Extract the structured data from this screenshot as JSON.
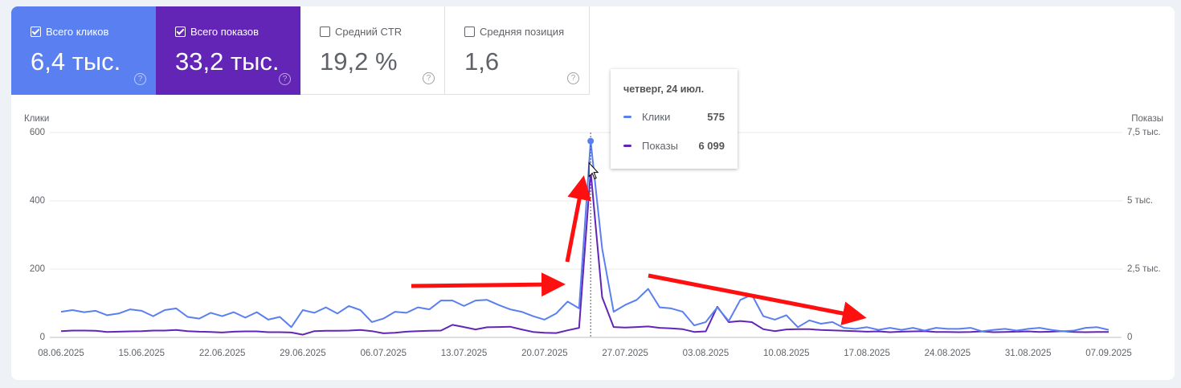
{
  "cards": [
    {
      "label": "Всего кликов",
      "value": "6,4 тыс.",
      "selected": true,
      "color": "#5a7ff0"
    },
    {
      "label": "Всего показов",
      "value": "33,2 тыс.",
      "selected": true,
      "color": "#6325b5"
    },
    {
      "label": "Средний CTR",
      "value": "19,2 %",
      "selected": false
    },
    {
      "label": "Средняя позиция",
      "value": "1,6",
      "selected": false
    }
  ],
  "chart_data": {
    "type": "line",
    "ylabel": "Клики",
    "y2label": "Показы",
    "x": [
      "08.06.2025",
      "09.06.2025",
      "10.06.2025",
      "11.06.2025",
      "12.06.2025",
      "13.06.2025",
      "14.06.2025",
      "15.06.2025",
      "16.06.2025",
      "17.06.2025",
      "18.06.2025",
      "19.06.2025",
      "20.06.2025",
      "21.06.2025",
      "22.06.2025",
      "23.06.2025",
      "24.06.2025",
      "25.06.2025",
      "26.06.2025",
      "27.06.2025",
      "28.06.2025",
      "29.06.2025",
      "30.06.2025",
      "01.07.2025",
      "02.07.2025",
      "03.07.2025",
      "04.07.2025",
      "05.07.2025",
      "06.07.2025",
      "07.07.2025",
      "08.07.2025",
      "09.07.2025",
      "10.07.2025",
      "11.07.2025",
      "12.07.2025",
      "13.07.2025",
      "14.07.2025",
      "15.07.2025",
      "16.07.2025",
      "17.07.2025",
      "18.07.2025",
      "19.07.2025",
      "20.07.2025",
      "21.07.2025",
      "22.07.2025",
      "23.07.2025",
      "24.07.2025",
      "25.07.2025",
      "26.07.2025",
      "27.07.2025",
      "28.07.2025",
      "29.07.2025",
      "30.07.2025",
      "31.07.2025",
      "01.08.2025",
      "02.08.2025",
      "03.08.2025",
      "04.08.2025",
      "05.08.2025",
      "06.08.2025",
      "07.08.2025",
      "08.08.2025",
      "09.08.2025",
      "10.08.2025",
      "11.08.2025",
      "12.08.2025",
      "13.08.2025",
      "14.08.2025",
      "15.08.2025",
      "16.08.2025",
      "17.08.2025",
      "18.08.2025",
      "19.08.2025",
      "20.08.2025",
      "21.08.2025",
      "22.08.2025",
      "23.08.2025",
      "24.08.2025",
      "25.08.2025",
      "26.08.2025",
      "27.08.2025",
      "28.08.2025",
      "29.08.2025",
      "30.08.2025",
      "31.08.2025",
      "01.09.2025",
      "02.09.2025",
      "03.09.2025",
      "04.09.2025",
      "05.09.2025",
      "06.09.2025",
      "07.09.2025"
    ],
    "xticks": [
      "08.06.2025",
      "15.06.2025",
      "22.06.2025",
      "29.06.2025",
      "06.07.2025",
      "13.07.2025",
      "20.07.2025",
      "27.07.2025",
      "03.08.2025",
      "10.08.2025",
      "17.08.2025",
      "24.08.2025",
      "31.08.2025",
      "07.09.2025"
    ],
    "ylim": [
      0,
      600
    ],
    "yticks": [
      0,
      200,
      400,
      600
    ],
    "y2lim": [
      0,
      7500
    ],
    "y2ticks": [
      0,
      {
        "value": 2500,
        "label": "2,5 тыс."
      },
      {
        "value": 5000,
        "label": "5 тыс."
      },
      {
        "value": 7500,
        "label": "7,5 тыс."
      }
    ],
    "grid": true,
    "series": [
      {
        "name": "Клики",
        "color": "#5a7ff0",
        "values": [
          75,
          80,
          74,
          78,
          65,
          70,
          82,
          78,
          62,
          80,
          85,
          60,
          55,
          72,
          62,
          74,
          58,
          74,
          52,
          60,
          30,
          80,
          72,
          88,
          70,
          92,
          80,
          45,
          55,
          75,
          72,
          88,
          82,
          108,
          108,
          92,
          108,
          110,
          95,
          82,
          75,
          62,
          52,
          70,
          105,
          85,
          575,
          260,
          75,
          95,
          110,
          142,
          88,
          85,
          75,
          35,
          45,
          88,
          48,
          110,
          125,
          62,
          52,
          65,
          30,
          50,
          40,
          45,
          28,
          25,
          30,
          22,
          28,
          22,
          28,
          20,
          28,
          25,
          25,
          28,
          18,
          22,
          25,
          20,
          25,
          28,
          22,
          18,
          20,
          28,
          30,
          22
        ]
      },
      {
        "name": "Показы",
        "color": "#6325b5",
        "axis": "y2",
        "values": [
          230,
          250,
          250,
          240,
          200,
          210,
          220,
          230,
          250,
          250,
          270,
          230,
          210,
          200,
          180,
          210,
          220,
          220,
          190,
          190,
          180,
          100,
          230,
          240,
          240,
          250,
          270,
          230,
          150,
          170,
          210,
          230,
          240,
          250,
          460,
          380,
          290,
          370,
          380,
          390,
          290,
          200,
          170,
          160,
          260,
          350,
          6099,
          1470,
          380,
          360,
          380,
          400,
          350,
          330,
          300,
          200,
          220,
          1120,
          560,
          600,
          560,
          300,
          230,
          290,
          300,
          300,
          270,
          260,
          240,
          230,
          210,
          220,
          190,
          210,
          220,
          230,
          200,
          200,
          190,
          200,
          220,
          190,
          200,
          210,
          220,
          200,
          210,
          230,
          200,
          190,
          200,
          200
        ]
      }
    ],
    "tooltip": {
      "title": "четверг, 24 июл.",
      "index": 46,
      "items": [
        {
          "value": 575
        },
        {
          "value": 6099,
          "label": "6 099"
        }
      ]
    }
  }
}
